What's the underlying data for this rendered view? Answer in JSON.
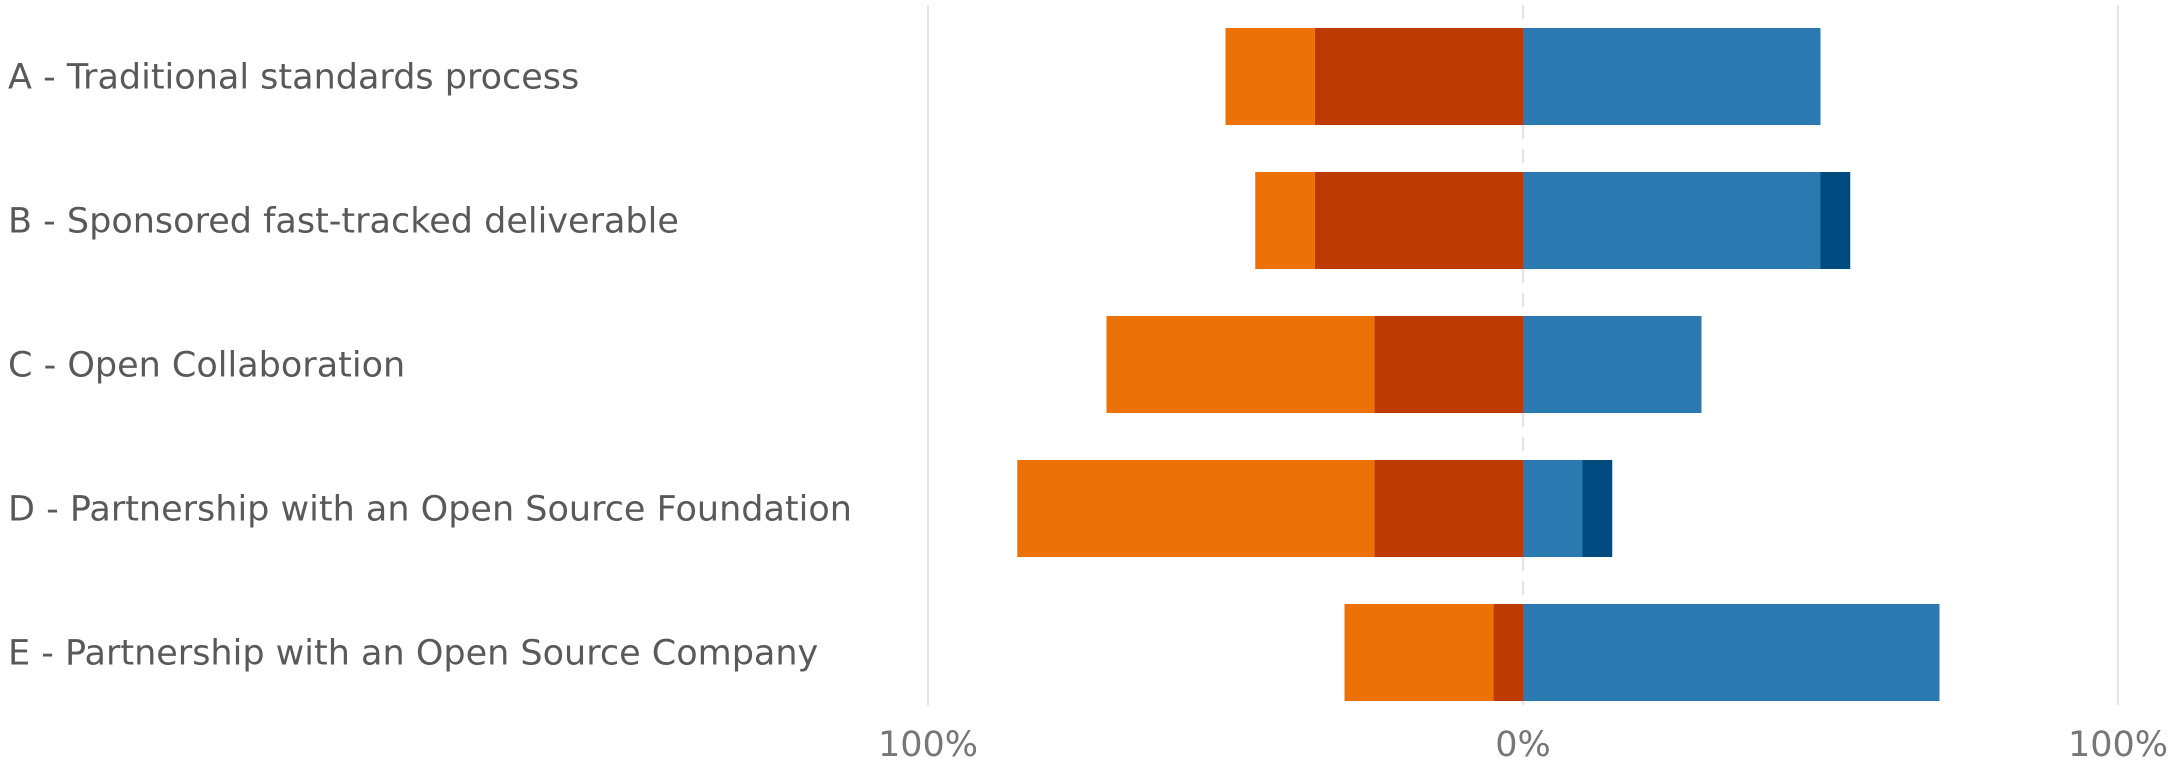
{
  "chart_data": {
    "type": "bar",
    "orientation": "horizontal",
    "stacking": "diverging",
    "categories": [
      "A - Traditional standards process",
      "B - Sponsored fast-tracked deliverable",
      "C - Open Collaboration",
      "D - Partnership with an Open Source Foundation",
      "E - Partnership with an Open Source Company"
    ],
    "series": [
      {
        "side": "negative",
        "color": "#BD3A02",
        "values": [
          35,
          35,
          25,
          25,
          5
        ]
      },
      {
        "side": "negative",
        "color": "#EC7207",
        "values": [
          15,
          10,
          45,
          60,
          25
        ]
      },
      {
        "side": "positive",
        "color": "#2A79B1",
        "values": [
          50,
          50,
          30,
          10,
          70
        ]
      },
      {
        "side": "positive",
        "color": "#004A80",
        "values": [
          0,
          5,
          0,
          5,
          0
        ]
      }
    ],
    "xlim": [
      -100,
      100
    ],
    "x_ticks": [
      "100%",
      "0%",
      "100%"
    ],
    "grid": true
  }
}
